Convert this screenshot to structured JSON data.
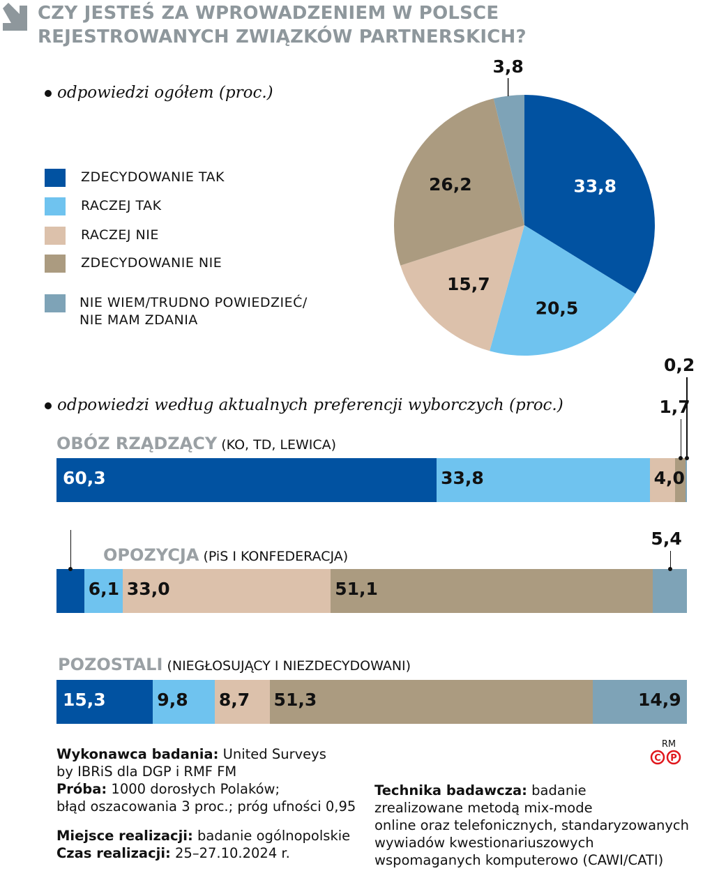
{
  "title_line1": "CZY JESTEŚ ZA WPROWADZENIEM W POLSCE",
  "title_line2": "REJESTROWANYCH ZWIĄZKÓW PARTNERSKICH?",
  "colors": {
    "zdecydowanie_tak": "#0152a1",
    "raczej_tak": "#6fc3ef",
    "raczej_nie": "#dcc1ab",
    "zdecydowanie_nie": "#ab9b80",
    "nie_wiem": "#7ea3b7",
    "title": "#8e979c"
  },
  "legend": [
    "ZDECYDOWANIE TAK",
    "RACZEJ TAK",
    "RACZEJ NIE",
    "ZDECYDOWANIE NIE",
    "NIE WIEM/TRUDNO POWIEDZIEĆ/",
    "NIE MAM ZDANIA"
  ],
  "chart_data": [
    {
      "type": "pie",
      "title": "odpowiedzi ogółem (proc.)",
      "categories": [
        "ZDECYDOWANIE TAK",
        "RACZEJ TAK",
        "RACZEJ NIE",
        "ZDECYDOWANIE NIE",
        "NIE WIEM/TRUDNO POWIEDZIEĆ/NIE MAM ZDANIA"
      ],
      "values": [
        33.8,
        20.5,
        15.7,
        26.2,
        3.8
      ],
      "labels": [
        "33,8",
        "20,5",
        "15,7",
        "26,2",
        "3,8"
      ]
    },
    {
      "type": "bar",
      "orientation": "horizontal-stacked",
      "title": "odpowiedzi według aktualnych preferencji wyborczych (proc.)",
      "categories": [
        "ZDECYDOWANIE TAK",
        "RACZEJ TAK",
        "RACZEJ NIE",
        "ZDECYDOWANIE NIE",
        "NIE WIEM/TRUDNO POWIEDZIEĆ/NIE MAM ZDANIA"
      ],
      "groups": [
        {
          "name": "OBÓZ RZĄDZĄCY",
          "detail": "(KO, TD, LEWICA)",
          "values": [
            60.3,
            33.8,
            4.0,
            1.7,
            0.2
          ],
          "labels": [
            "60,3",
            "33,8",
            "4,0",
            "1,7",
            "0,2"
          ]
        },
        {
          "name": "OPOZYCJA",
          "detail": "(PiS I KONFEDERACJA)",
          "values": [
            4.4,
            6.1,
            33.0,
            51.1,
            5.4
          ],
          "labels": [
            "4,4",
            "6,1",
            "33,0",
            "51,1",
            "5,4"
          ]
        },
        {
          "name": "POZOSTALI",
          "detail": "(NIEGŁOSUJĄCY I NIEZDECYDOWANI)",
          "values": [
            15.3,
            9.8,
            8.7,
            51.3,
            14.9
          ],
          "labels": [
            "15,3",
            "9,8",
            "8,7",
            "51,3",
            "14,9"
          ]
        }
      ]
    }
  ],
  "footer": {
    "l1b": "Wykonawca badania:",
    "l1": " United Surveys",
    "l2": "by IBRiS dla DGP i RMF FM",
    "l3b": "Próba:",
    "l3": " 1000 dorosłych Polaków;",
    "l4": "błąd oszacowania 3 proc.; próg ufności 0,95",
    "l5b": "Miejsce realizacji:",
    "l5": " badanie ogólnopolskie",
    "l6b": "Czas realizacji:",
    "l6": " 25–27.10.2024 r.",
    "r1b": "Technika badawcza:",
    "r1": " badanie",
    "r2": "zrealizowane metodą mix-mode",
    "r3": "online oraz telefonicznych, standaryzowanych",
    "r4": "wywiadów kwestionariuszowych",
    "r5": "wspomaganych komputerowo (CAWI/CATI)"
  },
  "logo_text": "RM"
}
